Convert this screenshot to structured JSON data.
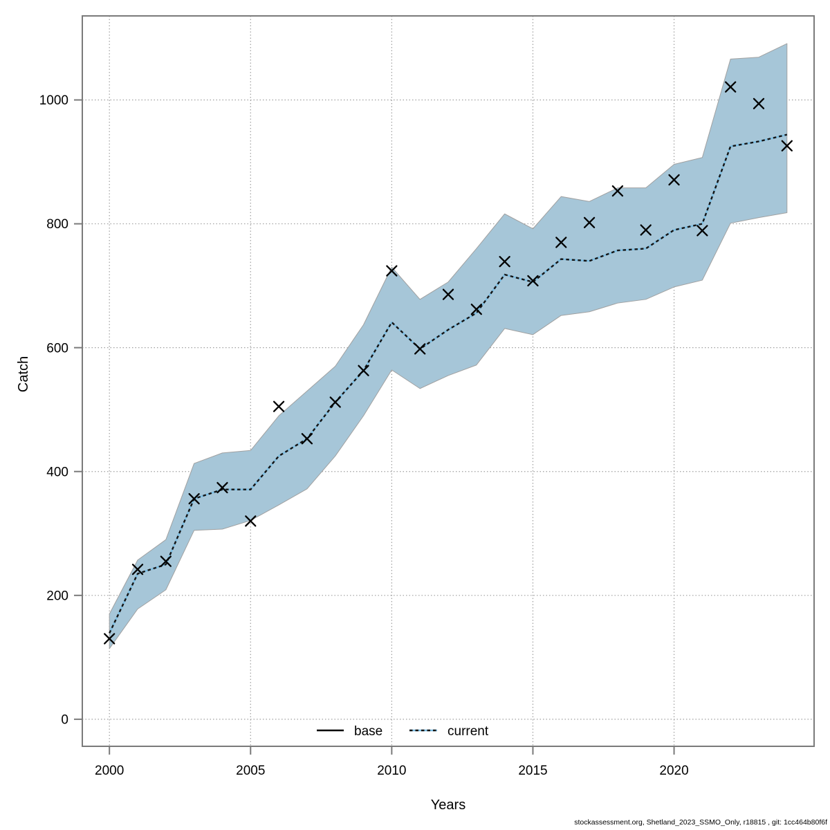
{
  "footer": "stockassessment.org, Shetland_2023_SSMO_Only, r18815 , git: 1cc464b80f6f",
  "colors": {
    "confidence_band_fill": "#a6c6d8",
    "band_edge": "#a0a0a0",
    "current_line_underlay": "#7bbde2",
    "current_line_dash": "#141414",
    "observation_marker": "#000000",
    "axis_frame": "#7a7a7a",
    "gridline": "#9e9e9e"
  },
  "chart_data": {
    "type": "line",
    "title": "",
    "xlabel": "Years",
    "ylabel": "Catch",
    "grid": true,
    "legend_position": "bottom-center",
    "xlim": [
      1999.04,
      2024.96
    ],
    "ylim": [
      -43.7,
      1135.7
    ],
    "xticks": [
      2000,
      2005,
      2010,
      2015,
      2020
    ],
    "yticks": [
      0,
      200,
      400,
      600,
      800,
      1000
    ],
    "x": [
      2000,
      2001,
      2002,
      2003,
      2004,
      2005,
      2006,
      2007,
      2008,
      2009,
      2010,
      2011,
      2012,
      2013,
      2014,
      2015,
      2016,
      2017,
      2018,
      2019,
      2020,
      2021,
      2022,
      2023,
      2024
    ],
    "series": [
      {
        "name": "observed-catch",
        "marker": "x",
        "line": "none",
        "color": "#000000",
        "values": [
          130,
          242,
          255,
          356,
          374,
          320,
          505,
          453,
          512,
          563,
          724,
          598,
          686,
          662,
          739,
          708,
          770,
          802,
          853,
          790,
          871,
          789,
          1021,
          994,
          926
        ]
      },
      {
        "name": "current",
        "marker": "none",
        "line": "dotted",
        "color": "#141414",
        "values": [
          139,
          235,
          250,
          356,
          371,
          371,
          425,
          453,
          512,
          563,
          641,
          598,
          629,
          656,
          718,
          706,
          743,
          740,
          757,
          760,
          790,
          800,
          925,
          933,
          944
        ]
      }
    ],
    "band": {
      "belongs_to": "current",
      "fill": "#a6c6d8",
      "lower": [
        114,
        178,
        209,
        305,
        307,
        321,
        346,
        372,
        425,
        490,
        564,
        534,
        555,
        572,
        631,
        621,
        652,
        658,
        672,
        678,
        698,
        709,
        801,
        810,
        818
      ],
      "upper": [
        170,
        257,
        290,
        413,
        430,
        434,
        490,
        530,
        570,
        637,
        730,
        678,
        706,
        760,
        816,
        792,
        844,
        836,
        858,
        858,
        896,
        907,
        1066,
        1069,
        1091
      ]
    },
    "legend": [
      {
        "label": "base",
        "sample": "solid-black"
      },
      {
        "label": "current",
        "sample": "dotted-blue"
      }
    ]
  }
}
